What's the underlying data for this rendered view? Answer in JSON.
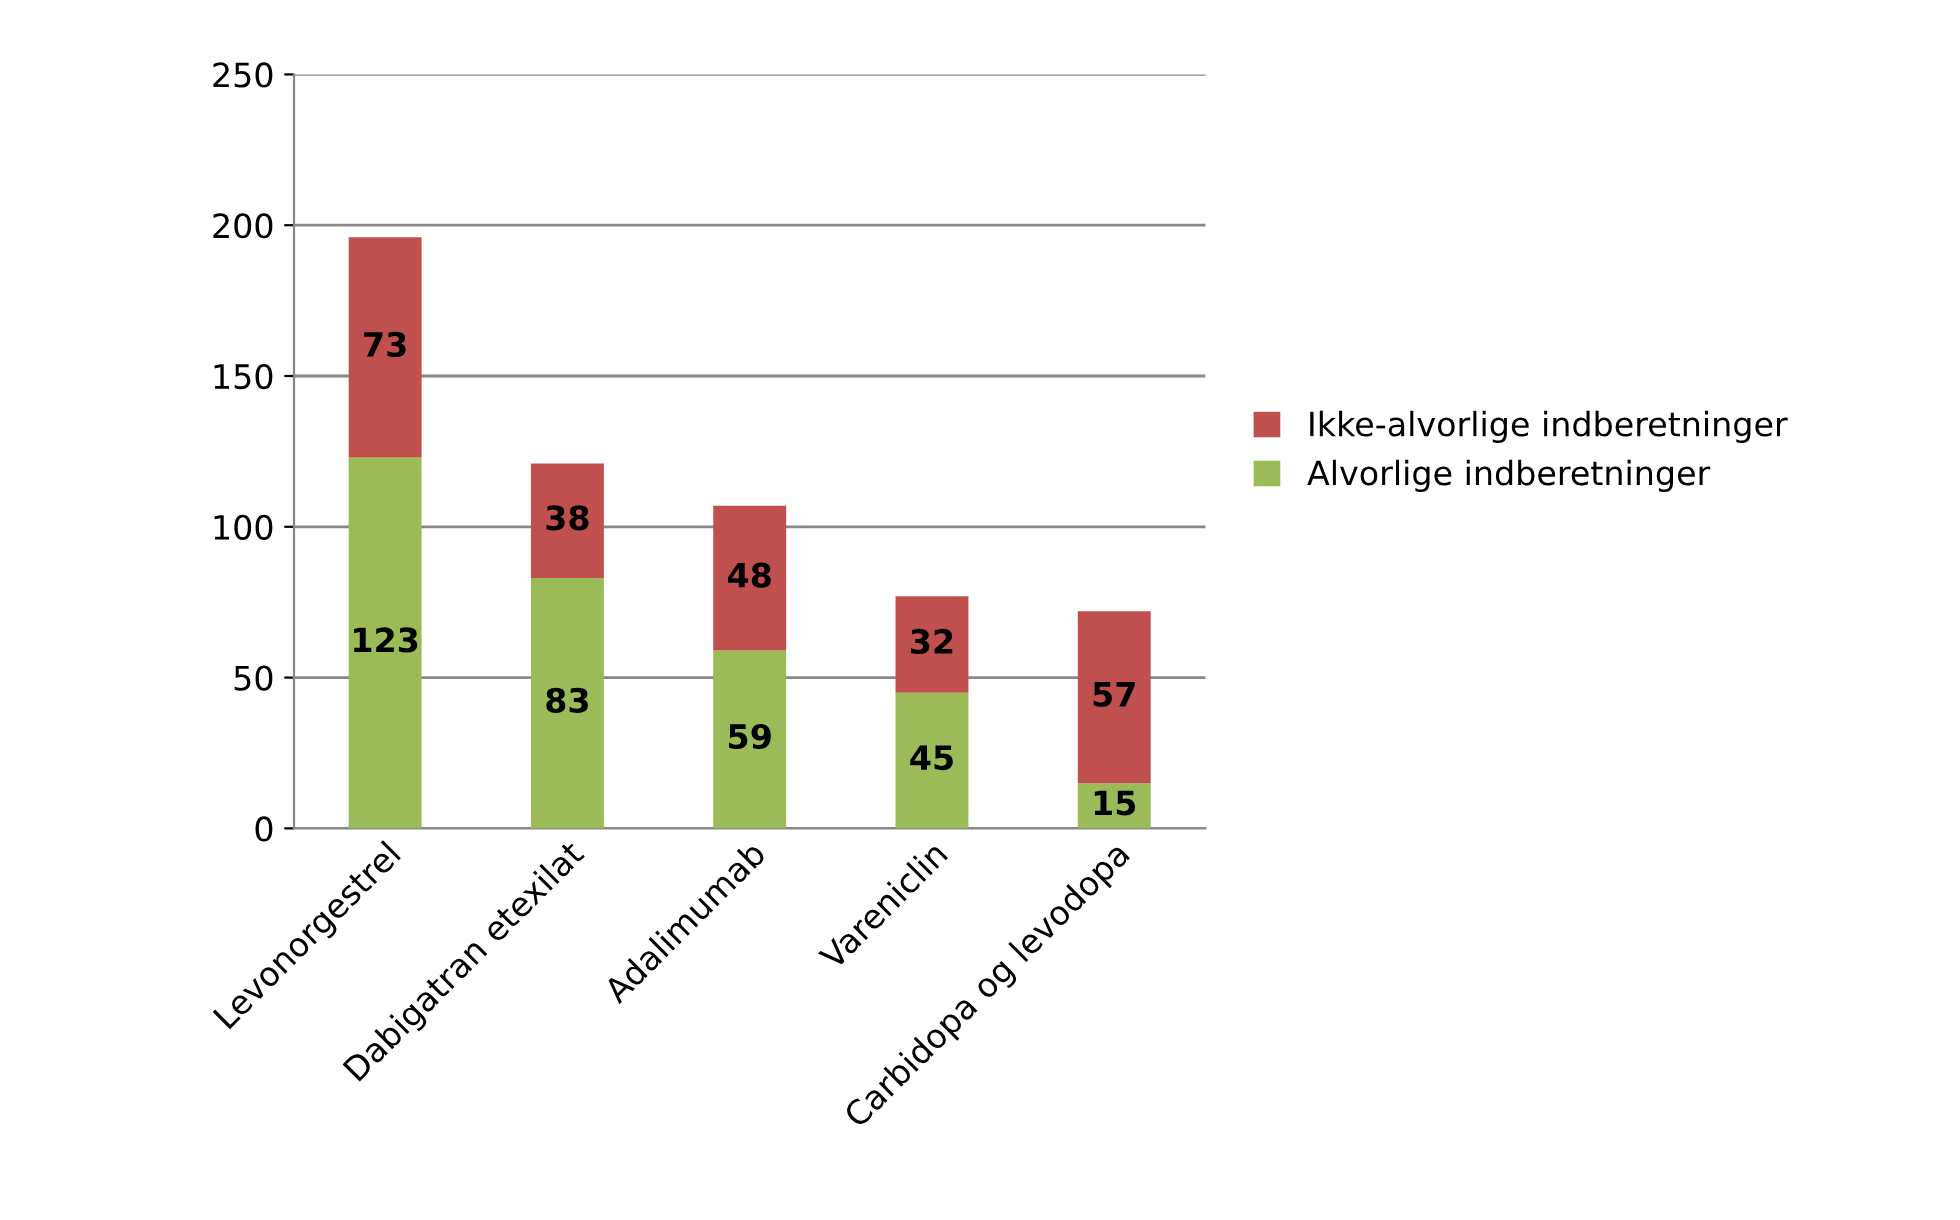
{
  "chart_data": {
    "type": "bar",
    "stacked": true,
    "categories": [
      "Levonorgestrel",
      "Dabigatran etexilat",
      "Adalimumab",
      "Vareniclin",
      "Carbidopa og levodopa"
    ],
    "series": [
      {
        "name": "Alvorlige indberetninger",
        "color": "#9bbb59",
        "values": [
          123,
          83,
          59,
          45,
          15
        ]
      },
      {
        "name": "Ikke-alvorlige indberetninger",
        "color": "#c0504d",
        "values": [
          73,
          38,
          48,
          32,
          57
        ]
      }
    ],
    "ylim": [
      0,
      250
    ],
    "yticks": [
      0,
      50,
      100,
      150,
      200,
      250
    ],
    "grid": "y",
    "legend": "right",
    "data_labels": true
  }
}
